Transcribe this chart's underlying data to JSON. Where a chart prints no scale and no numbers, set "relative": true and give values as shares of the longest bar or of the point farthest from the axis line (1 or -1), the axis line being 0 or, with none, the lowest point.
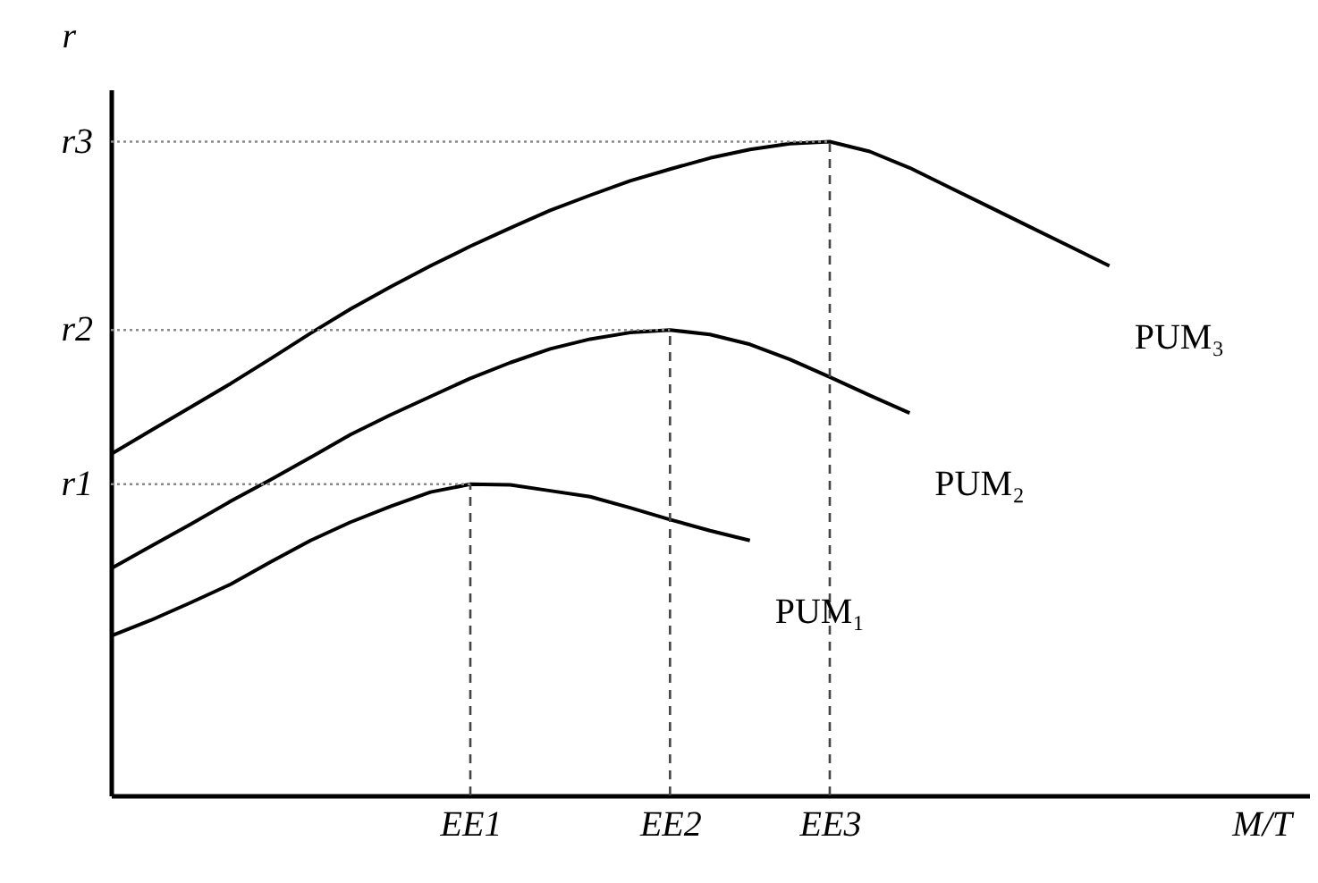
{
  "chart_data": {
    "type": "line",
    "relative": true,
    "xlabel": "M/T",
    "ylabel": "r",
    "legend": false,
    "marker": "none",
    "line_style": "solid",
    "categories": [
      null,
      null,
      null,
      null,
      null,
      null,
      null,
      null,
      null,
      "EE1",
      null,
      null,
      null,
      null,
      "EE2",
      null,
      null,
      null,
      "EE3",
      null,
      null,
      null,
      null,
      null,
      null,
      null,
      null,
      null,
      null,
      null,
      null
    ],
    "series": [
      {
        "name": "PUM₁",
        "color": "#000000",
        "values": [
          0.244,
          0.268,
          0.295,
          0.323,
          0.357,
          0.39,
          0.418,
          0.442,
          0.464,
          0.476,
          0.475,
          0.466,
          0.457,
          0.44,
          0.422,
          0.405,
          0.39,
          null,
          null,
          null,
          null,
          null,
          null,
          null,
          null,
          null,
          null,
          null,
          null,
          null,
          null
        ]
      },
      {
        "name": "PUM₂",
        "color": "#000000",
        "values": [
          0.347,
          0.381,
          0.415,
          0.45,
          0.483,
          0.517,
          0.552,
          0.582,
          0.61,
          0.638,
          0.662,
          0.683,
          0.698,
          0.708,
          0.712,
          0.705,
          0.69,
          0.667,
          0.64,
          0.612,
          0.585,
          null,
          null,
          null,
          null,
          null,
          null,
          null,
          null,
          null,
          null
        ]
      },
      {
        "name": "PUM₃",
        "color": "#000000",
        "values": [
          0.522,
          0.558,
          0.594,
          0.63,
          0.668,
          0.707,
          0.744,
          0.778,
          0.81,
          0.84,
          0.868,
          0.895,
          0.918,
          0.94,
          0.958,
          0.975,
          0.988,
          0.997,
          1,
          0.985,
          0.96,
          0.93,
          0.9,
          0.87,
          0.84,
          0.81,
          null,
          null,
          null,
          null,
          null
        ]
      }
    ],
    "ref_lines": [
      {
        "axis": "y",
        "value": 0.476,
        "label": "r1",
        "line_style": "dotted",
        "color": "#888888"
      },
      {
        "axis": "y",
        "value": 0.712,
        "label": "r2",
        "line_style": "dotted",
        "color": "#888888"
      },
      {
        "axis": "y",
        "value": 1,
        "label": "r3",
        "line_style": "dotted",
        "color": "#888888"
      },
      {
        "axis": "x",
        "value": "EE1",
        "line_style": "dashed",
        "color": "#444444"
      },
      {
        "axis": "x",
        "value": "EE2",
        "line_style": "dashed",
        "color": "#444444"
      },
      {
        "axis": "x",
        "value": "EE3",
        "line_style": "dashed",
        "color": "#444444"
      }
    ]
  }
}
